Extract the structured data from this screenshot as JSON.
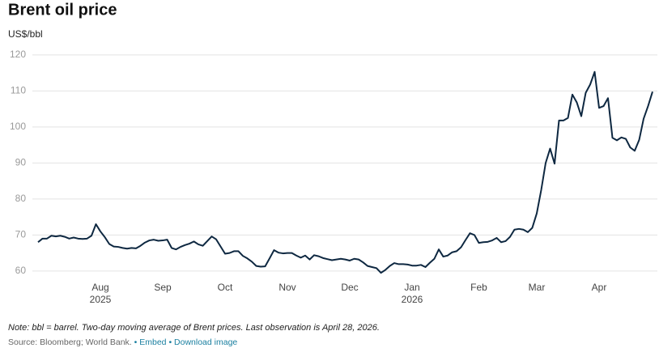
{
  "chart_data": {
    "type": "line",
    "title": "Brent oil price",
    "y_axis_label": "US$/bbl",
    "categories": [
      null,
      null,
      null,
      null,
      null,
      null,
      null,
      null,
      null,
      null,
      null,
      null,
      null,
      null,
      "Aug",
      null,
      null,
      null,
      null,
      null,
      null,
      null,
      null,
      null,
      null,
      null,
      null,
      null,
      "Sep",
      null,
      null,
      null,
      null,
      null,
      null,
      null,
      null,
      null,
      null,
      null,
      null,
      null,
      "Oct",
      null,
      null,
      null,
      null,
      null,
      null,
      null,
      null,
      null,
      null,
      null,
      null,
      null,
      "Nov",
      null,
      null,
      null,
      null,
      null,
      null,
      null,
      null,
      null,
      null,
      null,
      null,
      null,
      "Dec",
      null,
      null,
      null,
      null,
      null,
      null,
      null,
      null,
      null,
      null,
      null,
      null,
      null,
      "Jan",
      null,
      null,
      null,
      null,
      null,
      null,
      null,
      null,
      null,
      null,
      null,
      null,
      null,
      null,
      "Feb",
      null,
      null,
      null,
      null,
      null,
      null,
      null,
      null,
      null,
      null,
      null,
      null,
      "Mar",
      null,
      null,
      null,
      null,
      null,
      null,
      null,
      null,
      null,
      null,
      null,
      null,
      null,
      "Apr",
      null,
      null,
      null,
      null,
      null,
      null,
      null,
      null,
      null,
      null,
      null,
      null
    ],
    "category_years": [
      null,
      null,
      null,
      null,
      null,
      null,
      null,
      null,
      null,
      null,
      null,
      null,
      null,
      null,
      "2025",
      null,
      null,
      null,
      null,
      null,
      null,
      null,
      null,
      null,
      null,
      null,
      null,
      null,
      null,
      null,
      null,
      null,
      null,
      null,
      null,
      null,
      null,
      null,
      null,
      null,
      null,
      null,
      null,
      null,
      null,
      null,
      null,
      null,
      null,
      null,
      null,
      null,
      null,
      null,
      null,
      null,
      null,
      null,
      null,
      null,
      null,
      null,
      null,
      null,
      null,
      null,
      null,
      null,
      null,
      null,
      null,
      null,
      null,
      null,
      null,
      null,
      null,
      null,
      null,
      null,
      null,
      null,
      null,
      null,
      "2026",
      null,
      null,
      null,
      null,
      null,
      null,
      null,
      null,
      null,
      null,
      null,
      null,
      null,
      null,
      null,
      null,
      null,
      null,
      null,
      null,
      null,
      null,
      null,
      null,
      null,
      null,
      null,
      null,
      null,
      null,
      null,
      null,
      null,
      null,
      null,
      null,
      null,
      null,
      null,
      null,
      null,
      null,
      null,
      null,
      null,
      null,
      null,
      null,
      null,
      null,
      null,
      null,
      null,
      null,
      null,
      null,
      null,
      null,
      null
    ],
    "series": [
      {
        "name": "Brent",
        "color": "#0e2841",
        "values": [
          68,
          69,
          69,
          69.8,
          69.6,
          69.8,
          69.5,
          69,
          69.3,
          69,
          68.9,
          69,
          69.8,
          73,
          71,
          69.4,
          67.5,
          66.8,
          66.7,
          66.4,
          66.2,
          66.4,
          66.3,
          67,
          67.9,
          68.5,
          68.7,
          68.4,
          68.5,
          68.7,
          66.4,
          66,
          66.7,
          67.2,
          67.6,
          68.2,
          67.4,
          67,
          68.3,
          69.6,
          68.8,
          66.8,
          64.8,
          65,
          65.5,
          65.5,
          64.2,
          63.5,
          62.6,
          61.4,
          61.2,
          61.3,
          63.5,
          65.8,
          65.1,
          64.9,
          65,
          65,
          64.3,
          63.7,
          64.3,
          63.2,
          64.4,
          64.1,
          63.6,
          63.3,
          63,
          63.2,
          63.4,
          63.2,
          62.9,
          63.4,
          63.2,
          62.4,
          61.4,
          61.1,
          60.8,
          59.5,
          60.3,
          61.4,
          62.2,
          61.9,
          61.9,
          61.8,
          61.5,
          61.5,
          61.7,
          61.1,
          62.3,
          63.4,
          66,
          64,
          64.3,
          65.2,
          65.5,
          66.6,
          68.6,
          70.5,
          70,
          67.8,
          68,
          68.1,
          68.5,
          69.2,
          68,
          68.3,
          69.5,
          71.5,
          71.7,
          71.5,
          70.8,
          72,
          76,
          82.5,
          90,
          94,
          89.8,
          101.8,
          101.8,
          102.5,
          109,
          106.8,
          103,
          109.5,
          111.8,
          115.3,
          105.3,
          105.8,
          108,
          97,
          96.3,
          97.1,
          96.7,
          94.3,
          93.4,
          96.4,
          102.3,
          105.8,
          109.8
        ]
      }
    ],
    "ylim": [
      57.5,
      122
    ],
    "yticks": [
      60,
      70,
      80,
      90,
      100,
      110,
      120
    ],
    "grid": true,
    "note": "Note: bbl = barrel. Two-day moving average of Brent prices. Last observation is April 28, 2026.",
    "source": "Source: Bloomberg; World Bank.",
    "links": [
      "Embed",
      "Download image"
    ]
  }
}
